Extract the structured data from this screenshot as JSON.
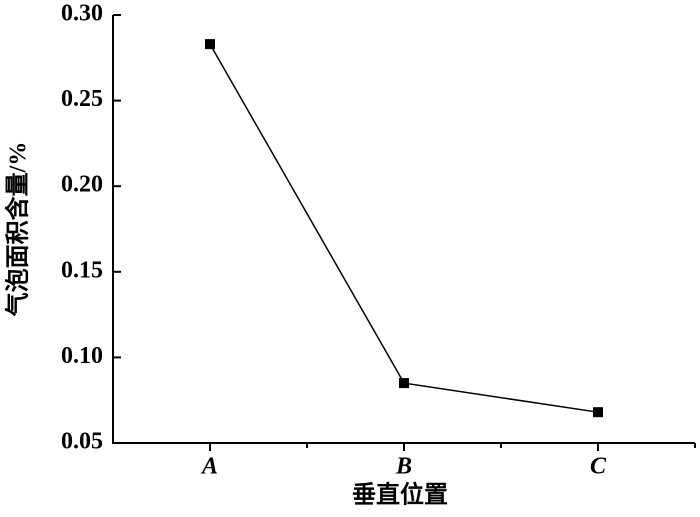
{
  "chart_data": {
    "type": "line",
    "x_label": "垂直位置",
    "y_label": "气泡面积含量/%",
    "categories": [
      "A",
      "B",
      "C"
    ],
    "series": [
      {
        "values": [
          0.283,
          0.085,
          0.068
        ],
        "color": "#000000"
      }
    ],
    "ylim": [
      0.05,
      0.3
    ],
    "yticks": [
      {
        "value": 0.05,
        "label": "0.05"
      },
      {
        "value": 0.1,
        "label": "0.10"
      },
      0.15,
      {
        "value": 0.2,
        "label": "0.20"
      },
      0.25,
      {
        "value": 0.3,
        "label": "0.30"
      }
    ]
  }
}
